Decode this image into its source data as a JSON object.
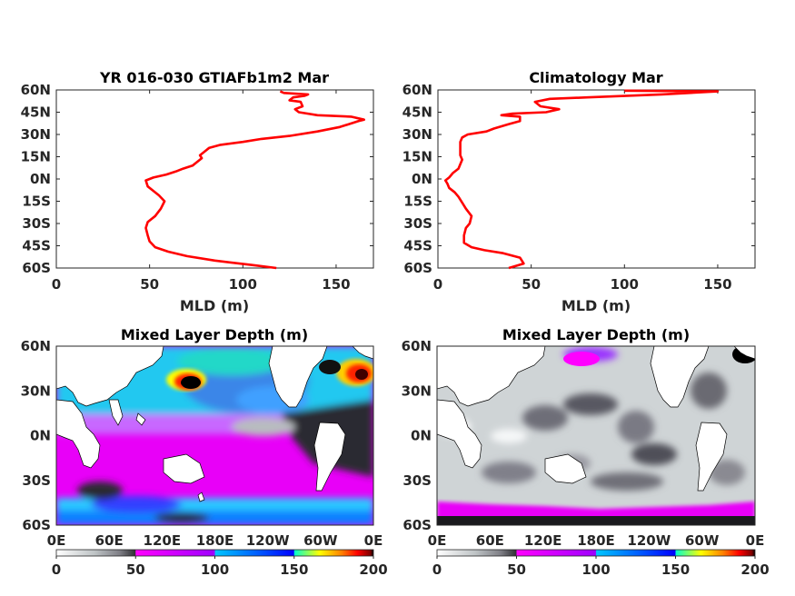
{
  "chart_data": [
    {
      "type": "line",
      "title": "YR 016-030 GTIAFb1m2 Mar",
      "xlabel": "MLD (m)",
      "ylabel": "",
      "xlim": [
        0,
        170
      ],
      "ylim": [
        -60,
        60
      ],
      "x_ticks": [
        "0",
        "50",
        "100",
        "150"
      ],
      "y_ticks": [
        "60N",
        "45N",
        "30N",
        "15N",
        "0N",
        "15S",
        "30S",
        "45S",
        "60S"
      ],
      "series": [
        {
          "color": "#ff0000",
          "points": [
            [
              118,
              -60
            ],
            [
              105,
              -58
            ],
            [
              85,
              -55
            ],
            [
              70,
              -52
            ],
            [
              60,
              -49
            ],
            [
              53,
              -46
            ],
            [
              50,
              -42
            ],
            [
              49,
              -38
            ],
            [
              48,
              -33
            ],
            [
              49,
              -29
            ],
            [
              53,
              -25
            ],
            [
              56,
              -20
            ],
            [
              58,
              -15
            ],
            [
              55,
              -11
            ],
            [
              52,
              -8
            ],
            [
              49,
              -5
            ],
            [
              48,
              -1
            ],
            [
              52,
              1
            ],
            [
              59,
              3
            ],
            [
              64,
              5
            ],
            [
              68,
              7
            ],
            [
              73,
              9
            ],
            [
              75,
              11
            ],
            [
              78,
              14
            ],
            [
              77,
              16
            ],
            [
              79,
              18
            ],
            [
              82,
              21
            ],
            [
              88,
              23
            ],
            [
              100,
              25
            ],
            [
              110,
              27
            ],
            [
              125,
              29
            ],
            [
              140,
              32
            ],
            [
              152,
              35
            ],
            [
              162,
              39
            ],
            [
              165,
              40
            ],
            [
              158,
              42
            ],
            [
              140,
              43
            ],
            [
              130,
              45
            ],
            [
              128,
              47
            ],
            [
              130,
              48
            ],
            [
              132,
              49
            ],
            [
              131,
              52
            ],
            [
              125,
              53
            ],
            [
              127,
              55
            ],
            [
              133,
              56
            ],
            [
              135,
              57
            ],
            [
              122,
              58
            ],
            [
              120,
              59
            ]
          ]
        }
      ]
    },
    {
      "type": "line",
      "title": "Climatology Mar",
      "xlabel": "MLD (m)",
      "ylabel": "",
      "xlim": [
        0,
        170
      ],
      "ylim": [
        -60,
        60
      ],
      "x_ticks": [
        "0",
        "50",
        "100",
        "150"
      ],
      "y_ticks": [
        "60N",
        "45N",
        "30N",
        "15N",
        "0N",
        "15S",
        "30S",
        "45S",
        "60S"
      ],
      "series": [
        {
          "color": "#ff0000",
          "points": [
            [
              38,
              -60
            ],
            [
              46,
              -57
            ],
            [
              44,
              -53
            ],
            [
              35,
              -50
            ],
            [
              25,
              -48
            ],
            [
              18,
              -46
            ],
            [
              14,
              -43
            ],
            [
              14,
              -38
            ],
            [
              15,
              -33
            ],
            [
              17,
              -30
            ],
            [
              18,
              -25
            ],
            [
              15,
              -20
            ],
            [
              13,
              -16
            ],
            [
              11,
              -12
            ],
            [
              9,
              -9
            ],
            [
              6,
              -6
            ],
            [
              5,
              -3
            ],
            [
              4,
              -1
            ],
            [
              6,
              1
            ],
            [
              8,
              4
            ],
            [
              11,
              7
            ],
            [
              12,
              10
            ],
            [
              13,
              13
            ],
            [
              12,
              16
            ],
            [
              12,
              19
            ],
            [
              12,
              22
            ],
            [
              12,
              25
            ],
            [
              13,
              28
            ],
            [
              16,
              30
            ],
            [
              26,
              32
            ],
            [
              30,
              34
            ],
            [
              38,
              37
            ],
            [
              44,
              39
            ],
            [
              44,
              42
            ],
            [
              34,
              43
            ],
            [
              40,
              44
            ],
            [
              58,
              45
            ],
            [
              65,
              47
            ],
            [
              55,
              49
            ],
            [
              52,
              52
            ],
            [
              60,
              54
            ],
            [
              80,
              55
            ],
            [
              120,
              57
            ],
            [
              150,
              59
            ],
            [
              100,
              59.5
            ]
          ]
        }
      ]
    },
    {
      "type": "heatmap",
      "title": "Mixed Layer Depth (m)",
      "x_ticks": [
        "0E",
        "60E",
        "120E",
        "180E",
        "120W",
        "60W",
        "0E"
      ],
      "y_ticks": [
        "60N",
        "30N",
        "0N",
        "30S",
        "60S"
      ],
      "colorbar_ticks": [
        "0",
        "50",
        "100",
        "150",
        "200"
      ],
      "clim": [
        0,
        200
      ],
      "colorbar_colors": [
        "#ffffff",
        "#bfc4c6",
        "#7f7f86",
        "#303034",
        "#ff00ff",
        "#9f00ff",
        "#00c8ff",
        "#0000ff",
        "#00ffcc",
        "#ffff00",
        "#ff8000",
        "#ff0000",
        "#800000",
        "#000000"
      ]
    },
    {
      "type": "heatmap",
      "title": "Mixed Layer Depth (m)",
      "x_ticks": [
        "0E",
        "60E",
        "120E",
        "180E",
        "120W",
        "60W",
        "0E"
      ],
      "y_ticks": [
        "60N",
        "30N",
        "0N",
        "30S",
        "60S"
      ],
      "colorbar_ticks": [
        "0",
        "50",
        "100",
        "150",
        "200"
      ],
      "clim": [
        0,
        200
      ],
      "colorbar_colors": [
        "#ffffff",
        "#bfc4c6",
        "#7f7f86",
        "#303034",
        "#ff00ff",
        "#9f00ff",
        "#00c8ff",
        "#0000ff",
        "#00ffcc",
        "#ffff00",
        "#ff8000",
        "#ff0000",
        "#800000",
        "#000000"
      ]
    }
  ]
}
